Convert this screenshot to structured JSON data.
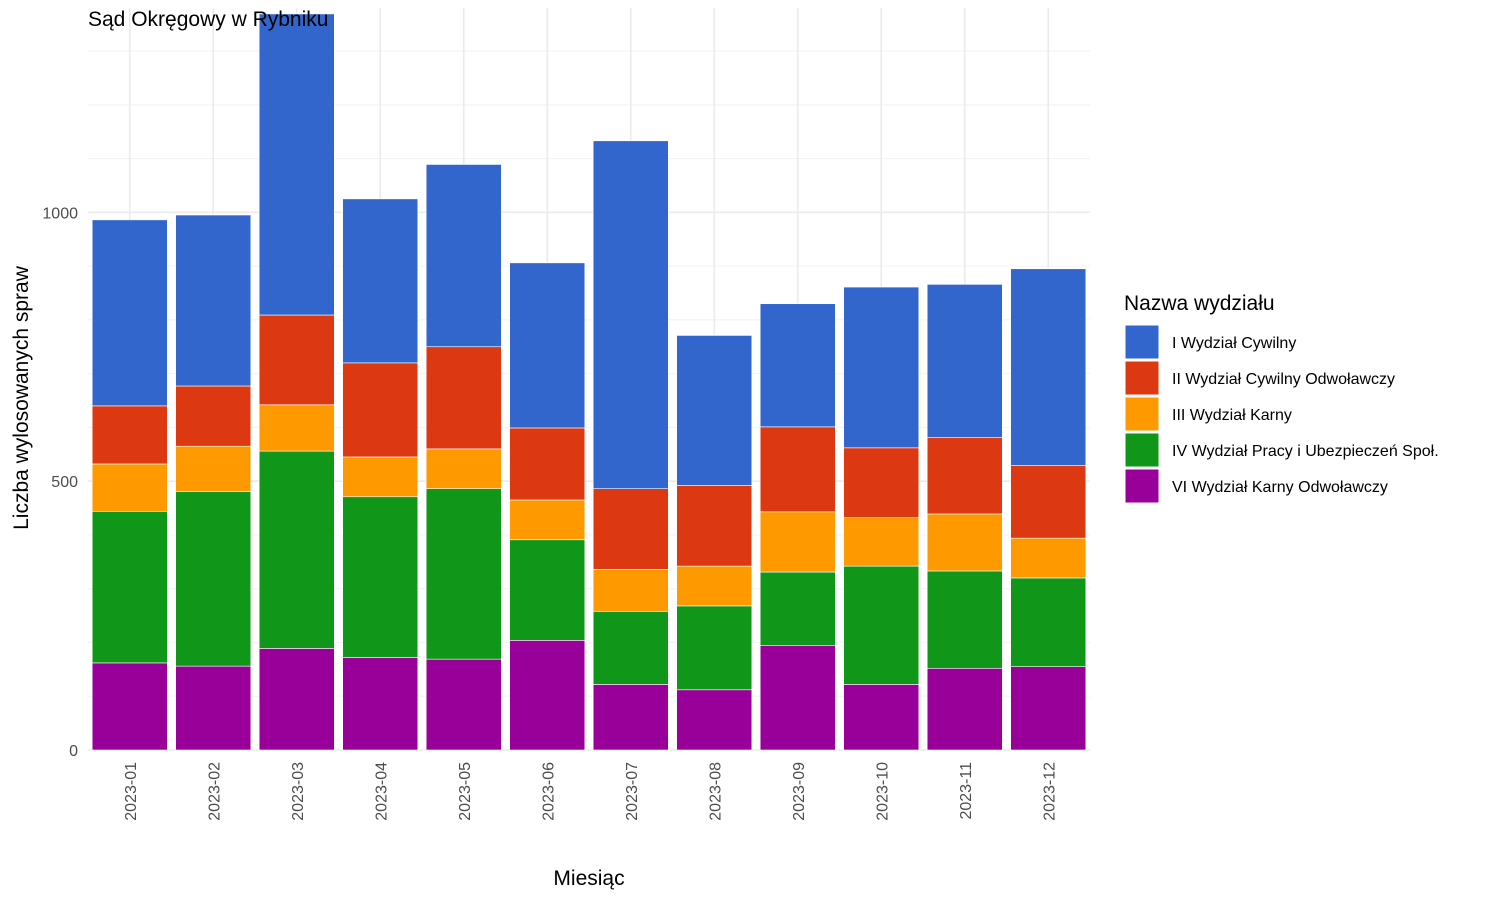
{
  "chart_data": {
    "type": "bar",
    "stacked": true,
    "title": "Sąd Okręgowy w Rybniku",
    "xlabel": "Miesiąc",
    "ylabel": "Liczba wylosowanych spraw",
    "ylim": [
      0,
      1380
    ],
    "y_ticks": [
      0,
      500,
      1000
    ],
    "y_tick_labels": [
      "0",
      "500",
      "1000"
    ],
    "grid": true,
    "legend_title": "Nazwa wydziału",
    "legend_position": "right",
    "categories": [
      "2023-01",
      "2023-02",
      "2023-03",
      "2023-04",
      "2023-05",
      "2023-06",
      "2023-07",
      "2023-08",
      "2023-09",
      "2023-10",
      "2023-11",
      "2023-12"
    ],
    "series": [
      {
        "name": "VI Wydział Karny Odwoławczy",
        "color": "#990099",
        "values": [
          162,
          156,
          189,
          172,
          169,
          204,
          122,
          112,
          194,
          122,
          152,
          155
        ]
      },
      {
        "name": "IV Wydział Pracy i Ubezpieczeń Społ.",
        "color": "#109618",
        "values": [
          282,
          325,
          367,
          299,
          317,
          187,
          136,
          156,
          137,
          220,
          181,
          165
        ]
      },
      {
        "name": "III Wydział Karny",
        "color": "#FF9900",
        "values": [
          88,
          84,
          86,
          74,
          74,
          74,
          78,
          74,
          112,
          90,
          106,
          74
        ]
      },
      {
        "name": "II Wydział Cywilny Odwoławczy",
        "color": "#DC3912",
        "values": [
          108,
          112,
          167,
          175,
          190,
          134,
          150,
          150,
          158,
          130,
          142,
          135
        ]
      },
      {
        "name": "I Wydział Cywilny",
        "color": "#3366CC",
        "values": [
          346,
          318,
          560,
          305,
          339,
          307,
          647,
          279,
          229,
          299,
          285,
          366
        ]
      }
    ],
    "legend_order": [
      "I Wydział Cywilny",
      "II Wydział Cywilny Odwoławczy",
      "III Wydział Karny",
      "IV Wydział Pracy i Ubezpieczeń Społ.",
      "VI Wydział Karny Odwoławczy"
    ]
  }
}
